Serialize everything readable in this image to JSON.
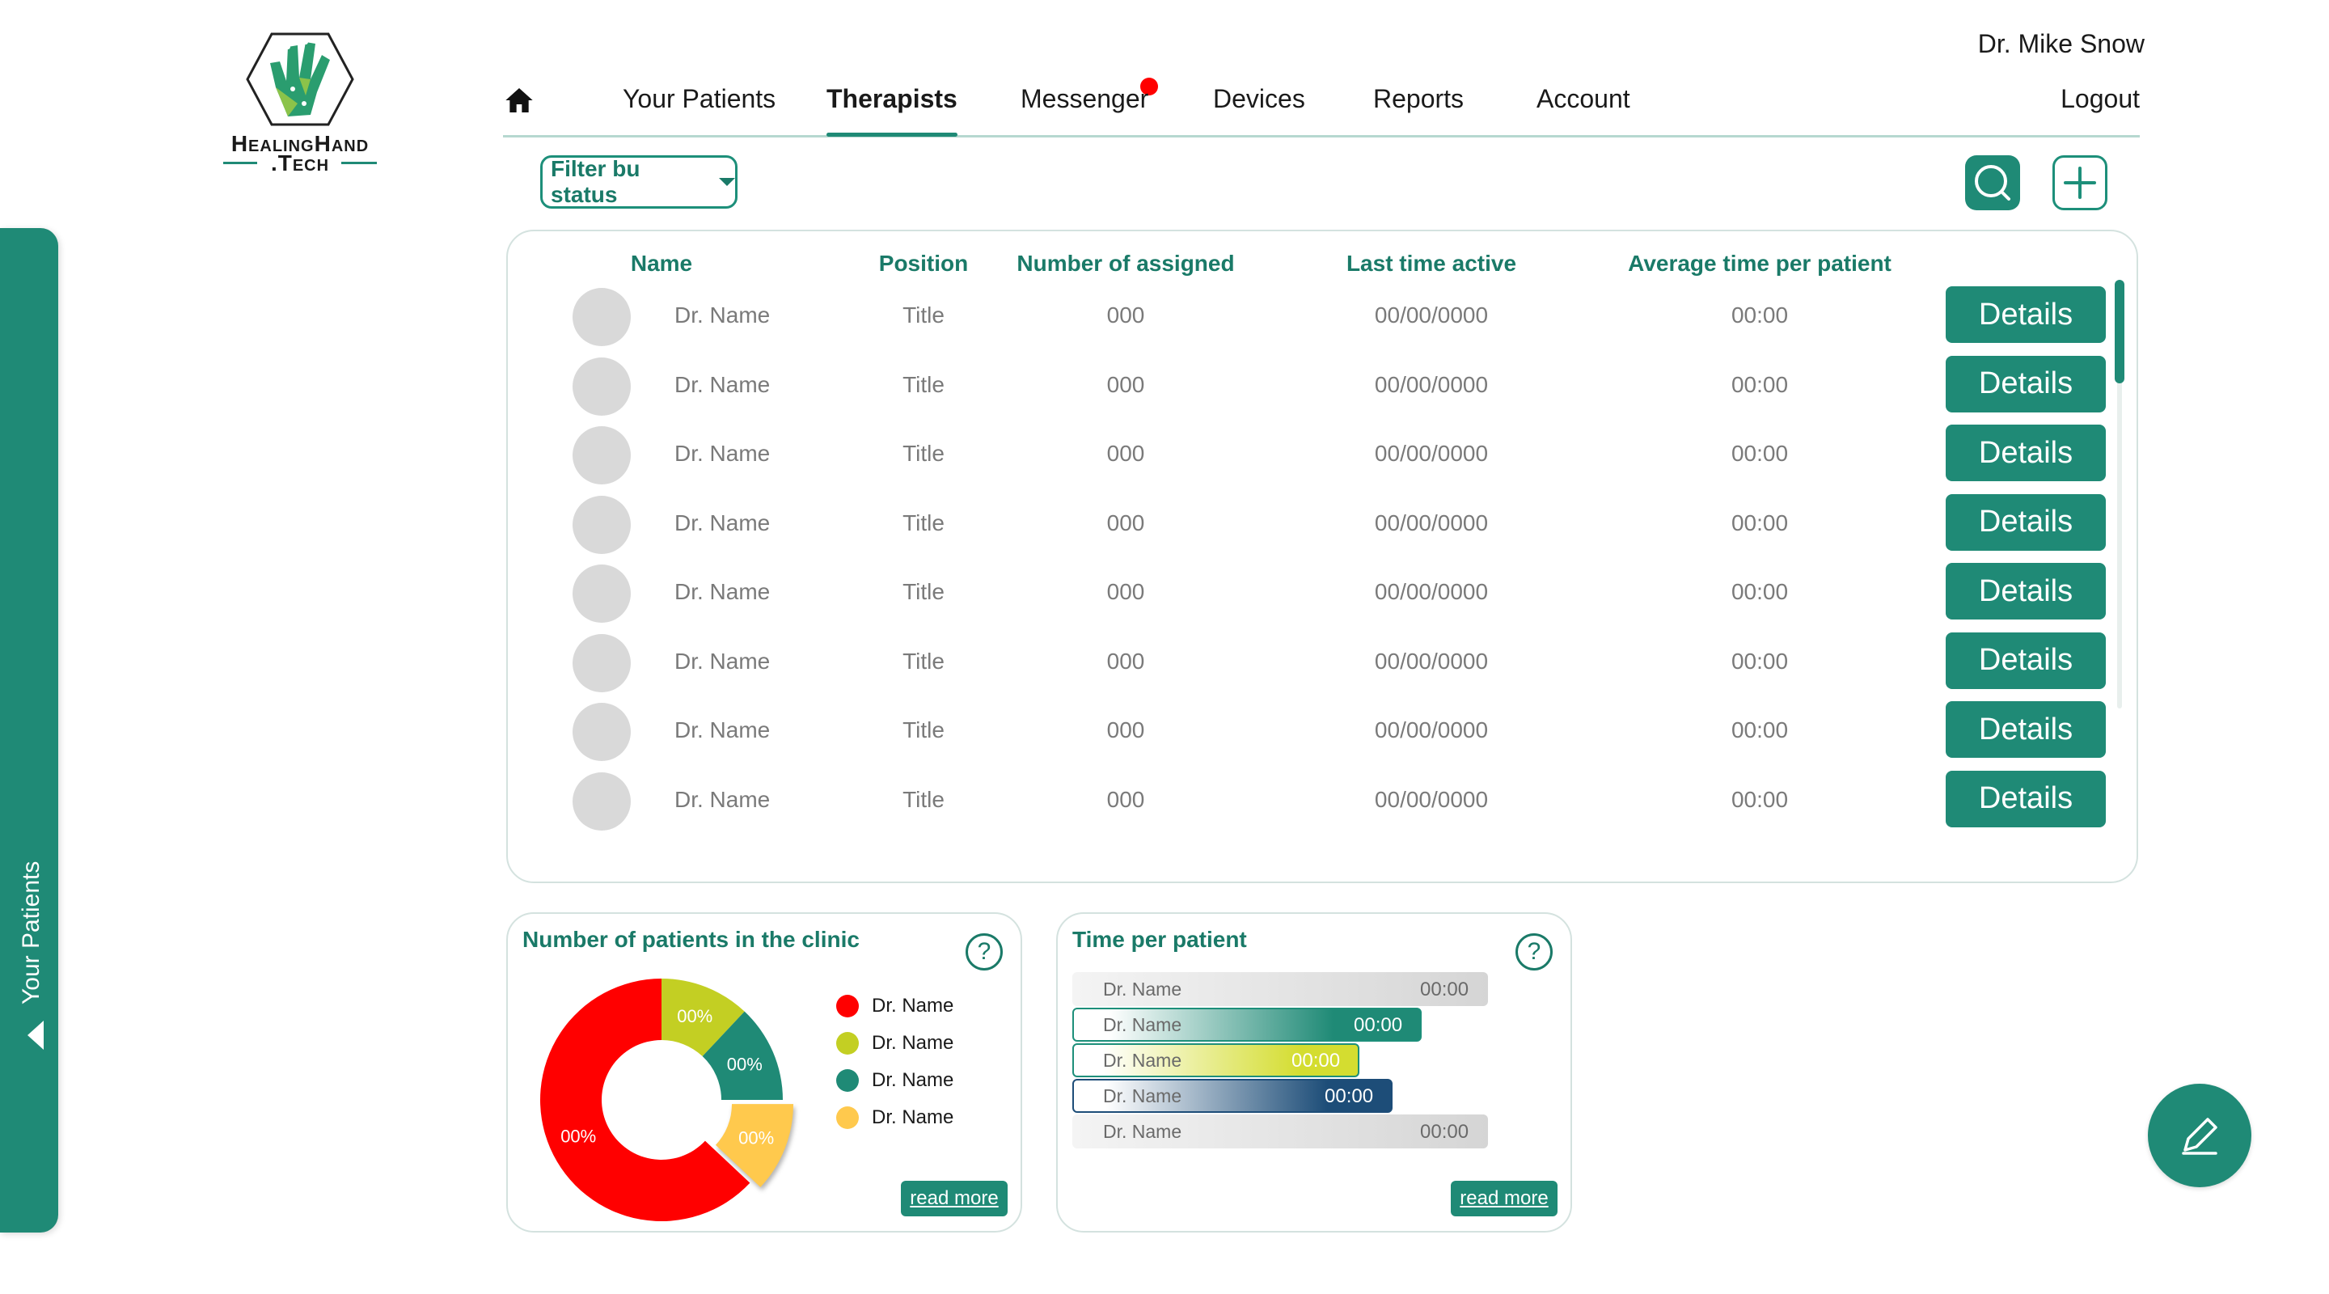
{
  "brand": {
    "line1": "HealingHand",
    "line2": ".Tech"
  },
  "user": {
    "name": "Dr. Mike Snow",
    "logout": "Logout"
  },
  "nav": {
    "items": [
      {
        "label": "Your Patients"
      },
      {
        "label": "Therapists",
        "active": true
      },
      {
        "label": "Messenger",
        "has_notification": true
      },
      {
        "label": "Devices"
      },
      {
        "label": "Reports"
      },
      {
        "label": "Account"
      }
    ]
  },
  "toolbar": {
    "filter_label": "Filter bu status"
  },
  "table": {
    "headers": {
      "name": "Name",
      "position": "Position",
      "assigned": "Number of assigned",
      "last_active": "Last time active",
      "avg_time": "Average time per patient"
    },
    "rows": [
      {
        "name": "Dr. Name",
        "position": "Title",
        "assigned": "000",
        "last_active": "00/00/0000",
        "avg_time": "00:00",
        "action": "Details"
      },
      {
        "name": "Dr. Name",
        "position": "Title",
        "assigned": "000",
        "last_active": "00/00/0000",
        "avg_time": "00:00",
        "action": "Details"
      },
      {
        "name": "Dr. Name",
        "position": "Title",
        "assigned": "000",
        "last_active": "00/00/0000",
        "avg_time": "00:00",
        "action": "Details"
      },
      {
        "name": "Dr. Name",
        "position": "Title",
        "assigned": "000",
        "last_active": "00/00/0000",
        "avg_time": "00:00",
        "action": "Details"
      },
      {
        "name": "Dr. Name",
        "position": "Title",
        "assigned": "000",
        "last_active": "00/00/0000",
        "avg_time": "00:00",
        "action": "Details"
      },
      {
        "name": "Dr. Name",
        "position": "Title",
        "assigned": "000",
        "last_active": "00/00/0000",
        "avg_time": "00:00",
        "action": "Details"
      },
      {
        "name": "Dr. Name",
        "position": "Title",
        "assigned": "000",
        "last_active": "00/00/0000",
        "avg_time": "00:00",
        "action": "Details"
      },
      {
        "name": "Dr. Name",
        "position": "Title",
        "assigned": "000",
        "last_active": "00/00/0000",
        "avg_time": "00:00",
        "action": "Details"
      }
    ]
  },
  "patients_card": {
    "title": "Number of patients in the clinic",
    "help": "?",
    "read_more": "read more",
    "slices": [
      {
        "name": "Dr. Name",
        "label": "00%",
        "color": "#ff0000",
        "share": 0.63
      },
      {
        "name": "Dr. Name",
        "label": "00%",
        "color": "#c3cf23",
        "share": 0.12
      },
      {
        "name": "Dr. Name",
        "label": "00%",
        "color": "#1f8a76",
        "share": 0.13
      },
      {
        "name": "Dr. Name",
        "label": "00%",
        "color": "#ffc94d",
        "share": 0.12
      }
    ]
  },
  "time_card": {
    "title": "Time per patient",
    "help": "?",
    "read_more": "read more",
    "bars": [
      {
        "name": "Dr. Name",
        "value": "00:00",
        "fill": 1.0,
        "style": "gray"
      },
      {
        "name": "Dr. Name",
        "value": "00:00",
        "fill": 0.84,
        "style": "teal"
      },
      {
        "name": "Dr. Name",
        "value": "00:00",
        "fill": 0.69,
        "style": "lime"
      },
      {
        "name": "Dr. Name",
        "value": "00:00",
        "fill": 0.77,
        "style": "navy"
      },
      {
        "name": "Dr. Name",
        "value": "00:00",
        "fill": 1.0,
        "style": "gray"
      }
    ]
  },
  "side_drawer": {
    "label": "Your Patients"
  }
}
